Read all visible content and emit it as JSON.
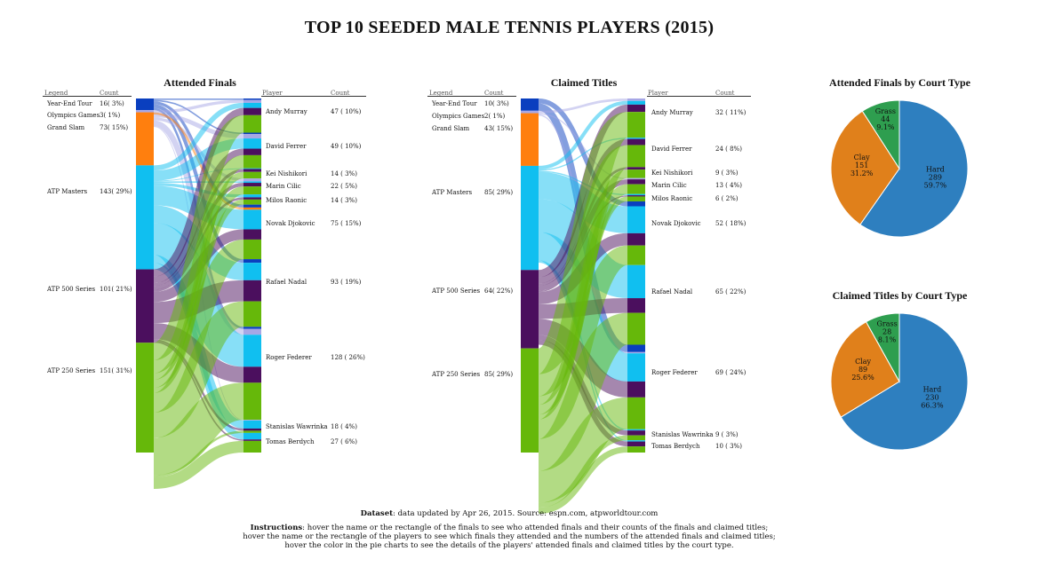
{
  "title": "TOP 10 SEEDED MALE TENNIS PLAYERS (2015)",
  "colors": {
    "year_end_tour": "#0a3fbf",
    "olympics": "#a7a7e6",
    "grand_slam": "#ff7f0e",
    "atp_masters": "#10bff0",
    "atp_500": "#4b0f5e",
    "atp_250": "#66b80a",
    "hard": "#2e7fbf",
    "clay": "#e0801b",
    "grass": "#2e9e4f"
  },
  "headers": {
    "legend": "Legend",
    "count": "Count",
    "player": "Player"
  },
  "chart_data": [
    {
      "type": "sankey",
      "title": "Attended Finals",
      "finals": [
        {
          "name": "Year-End Tour",
          "count": "16",
          "pct": "( 3%)",
          "value": 16,
          "color": "#0a3fbf"
        },
        {
          "name": "Olympics Games",
          "count": "3",
          "pct": "( 1%)",
          "value": 3,
          "color": "#a7a7e6"
        },
        {
          "name": "Grand Slam",
          "count": "73",
          "pct": "( 15%)",
          "value": 73,
          "color": "#ff7f0e"
        },
        {
          "name": "ATP Masters",
          "count": "143",
          "pct": "( 29%)",
          "value": 143,
          "color": "#10bff0"
        },
        {
          "name": "ATP 500 Series",
          "count": "101",
          "pct": "( 21%)",
          "value": 101,
          "color": "#4b0f5e"
        },
        {
          "name": "ATP 250 Series",
          "count": "151",
          "pct": "( 31%)",
          "value": 151,
          "color": "#66b80a"
        }
      ],
      "players": [
        {
          "name": "Andy Murray",
          "count": "47",
          "pct": "( 10%)",
          "value": 47
        },
        {
          "name": "David Ferrer",
          "count": "49",
          "pct": "( 10%)",
          "value": 49
        },
        {
          "name": "Kei Nishikori",
          "count": "14",
          "pct": "( 3%)",
          "value": 14
        },
        {
          "name": "Marin Cilic",
          "count": "22",
          "pct": "( 5%)",
          "value": 22
        },
        {
          "name": "Milos Raonic",
          "count": "14",
          "pct": "( 3%)",
          "value": 14
        },
        {
          "name": "Novak Djokovic",
          "count": "75",
          "pct": "( 15%)",
          "value": 75
        },
        {
          "name": "Rafael Nadal",
          "count": "93",
          "pct": "( 19%)",
          "value": 93
        },
        {
          "name": "Roger Federer",
          "count": "128",
          "pct": "( 26%)",
          "value": 128
        },
        {
          "name": "Stanislas Wawrinka",
          "count": "18",
          "pct": "( 4%)",
          "value": 18
        },
        {
          "name": "Tomas Berdych",
          "count": "27",
          "pct": "( 6%)",
          "value": 27
        }
      ],
      "links": [
        [
          2,
          4,
          0,
          7,
          10,
          24
        ],
        [
          2,
          6,
          0,
          14,
          9,
          18
        ],
        [
          0,
          0,
          0,
          1,
          4,
          9
        ],
        [
          0,
          4,
          0,
          2,
          5,
          11
        ],
        [
          0,
          0,
          0,
          4,
          3,
          7
        ],
        [
          4,
          0,
          3,
          27,
          14,
          27
        ],
        [
          5,
          0,
          0,
          24,
          29,
          35
        ],
        [
          3,
          8,
          0,
          44,
          22,
          51
        ],
        [
          0,
          1,
          0,
          11,
          3,
          3
        ],
        [
          0,
          0,
          0,
          9,
          2,
          16
        ]
      ]
    },
    {
      "type": "sankey",
      "title": "Claimed Titles",
      "finals": [
        {
          "name": "Year-End Tour",
          "count": "10",
          "pct": "( 3%)",
          "value": 10,
          "color": "#0a3fbf"
        },
        {
          "name": "Olympics Games",
          "count": "2",
          "pct": "( 1%)",
          "value": 2,
          "color": "#a7a7e6"
        },
        {
          "name": "Grand Slam",
          "count": "43",
          "pct": "( 15%)",
          "value": 43,
          "color": "#ff7f0e"
        },
        {
          "name": "ATP Masters",
          "count": "85",
          "pct": "( 29%)",
          "value": 85,
          "color": "#10bff0"
        },
        {
          "name": "ATP 500 Series",
          "count": "64",
          "pct": "( 22%)",
          "value": 64,
          "color": "#4b0f5e"
        },
        {
          "name": "ATP 250 Series",
          "count": "85",
          "pct": "( 29%)",
          "value": 85,
          "color": "#66b80a"
        }
      ],
      "players": [
        {
          "name": "Andy Murray",
          "count": "32",
          "pct": "( 11%)",
          "value": 32
        },
        {
          "name": "David Ferrer",
          "count": "24",
          "pct": "( 8%)",
          "value": 24
        },
        {
          "name": "Kei Nishikori",
          "count": "9",
          "pct": "( 3%)",
          "value": 9
        },
        {
          "name": "Marin Cilic",
          "count": "13",
          "pct": "( 4%)",
          "value": 13
        },
        {
          "name": "Milos Raonic",
          "count": "6",
          "pct": "( 2%)",
          "value": 6
        },
        {
          "name": "Novak Djokovic",
          "count": "52",
          "pct": "( 18%)",
          "value": 52
        },
        {
          "name": "Rafael Nadal",
          "count": "65",
          "pct": "( 22%)",
          "value": 65
        },
        {
          "name": "Roger Federer",
          "count": "69",
          "pct": "( 24%)",
          "value": 69
        },
        {
          "name": "Stanislas Wawrinka",
          "count": "9",
          "pct": "( 3%)",
          "value": 9
        },
        {
          "name": "Tomas Berdych",
          "count": "10",
          "pct": "( 3%)",
          "value": 10
        }
      ],
      "links": [
        [
          0,
          2,
          0,
          3,
          6,
          21
        ],
        [
          0,
          0,
          0,
          1,
          5,
          18
        ],
        [
          0,
          0,
          0,
          0,
          2,
          7
        ],
        [
          0,
          1,
          0,
          0,
          4,
          8
        ],
        [
          0,
          0,
          0,
          1,
          1,
          4
        ],
        [
          4,
          0,
          0,
          22,
          10,
          16
        ],
        [
          0,
          0,
          0,
          27,
          12,
          26
        ],
        [
          6,
          1,
          0,
          23,
          13,
          26
        ],
        [
          0,
          0,
          0,
          1,
          4,
          4
        ],
        [
          0,
          0,
          0,
          1,
          4,
          5
        ]
      ]
    },
    {
      "type": "pie",
      "title": "Attended Finals by Court Type",
      "slices": [
        {
          "name": "Hard",
          "value": 289,
          "value_label": "289",
          "pct": "59.7%",
          "color": "#2e7fbf"
        },
        {
          "name": "Clay",
          "value": 151,
          "value_label": "151",
          "pct": "31.2%",
          "color": "#e0801b"
        },
        {
          "name": "Grass",
          "value": 44,
          "value_label": "44",
          "pct": "9.1%",
          "color": "#2e9e4f"
        }
      ]
    },
    {
      "type": "pie",
      "title": "Claimed Titles by Court Type",
      "slices": [
        {
          "name": "Hard",
          "value": 230,
          "value_label": "230",
          "pct": "66.3%",
          "color": "#2e7fbf"
        },
        {
          "name": "Clay",
          "value": 89,
          "value_label": "89",
          "pct": "25.6%",
          "color": "#e0801b"
        },
        {
          "name": "Grass",
          "value": 28,
          "value_label": "28",
          "pct": "8.1%",
          "color": "#2e9e4f"
        }
      ]
    }
  ],
  "footer": {
    "dataset_label": "Dataset",
    "dataset_text": ": data updated by Apr 26, 2015. Source: espn.com, atpworldtour.com",
    "instructions_label": "Instructions",
    "instructions_line1": ": hover the name or the rectangle of the finals to see who attended finals and their counts of the finals and claimed titles;",
    "instructions_line2": "hover the name or the rectangle of the players to see which finals they attended and the numbers of the attended finals and claimed titles;",
    "instructions_line3": "hover the color in the pie charts to see the details of the players' attended finals and claimed titles by the court type."
  }
}
